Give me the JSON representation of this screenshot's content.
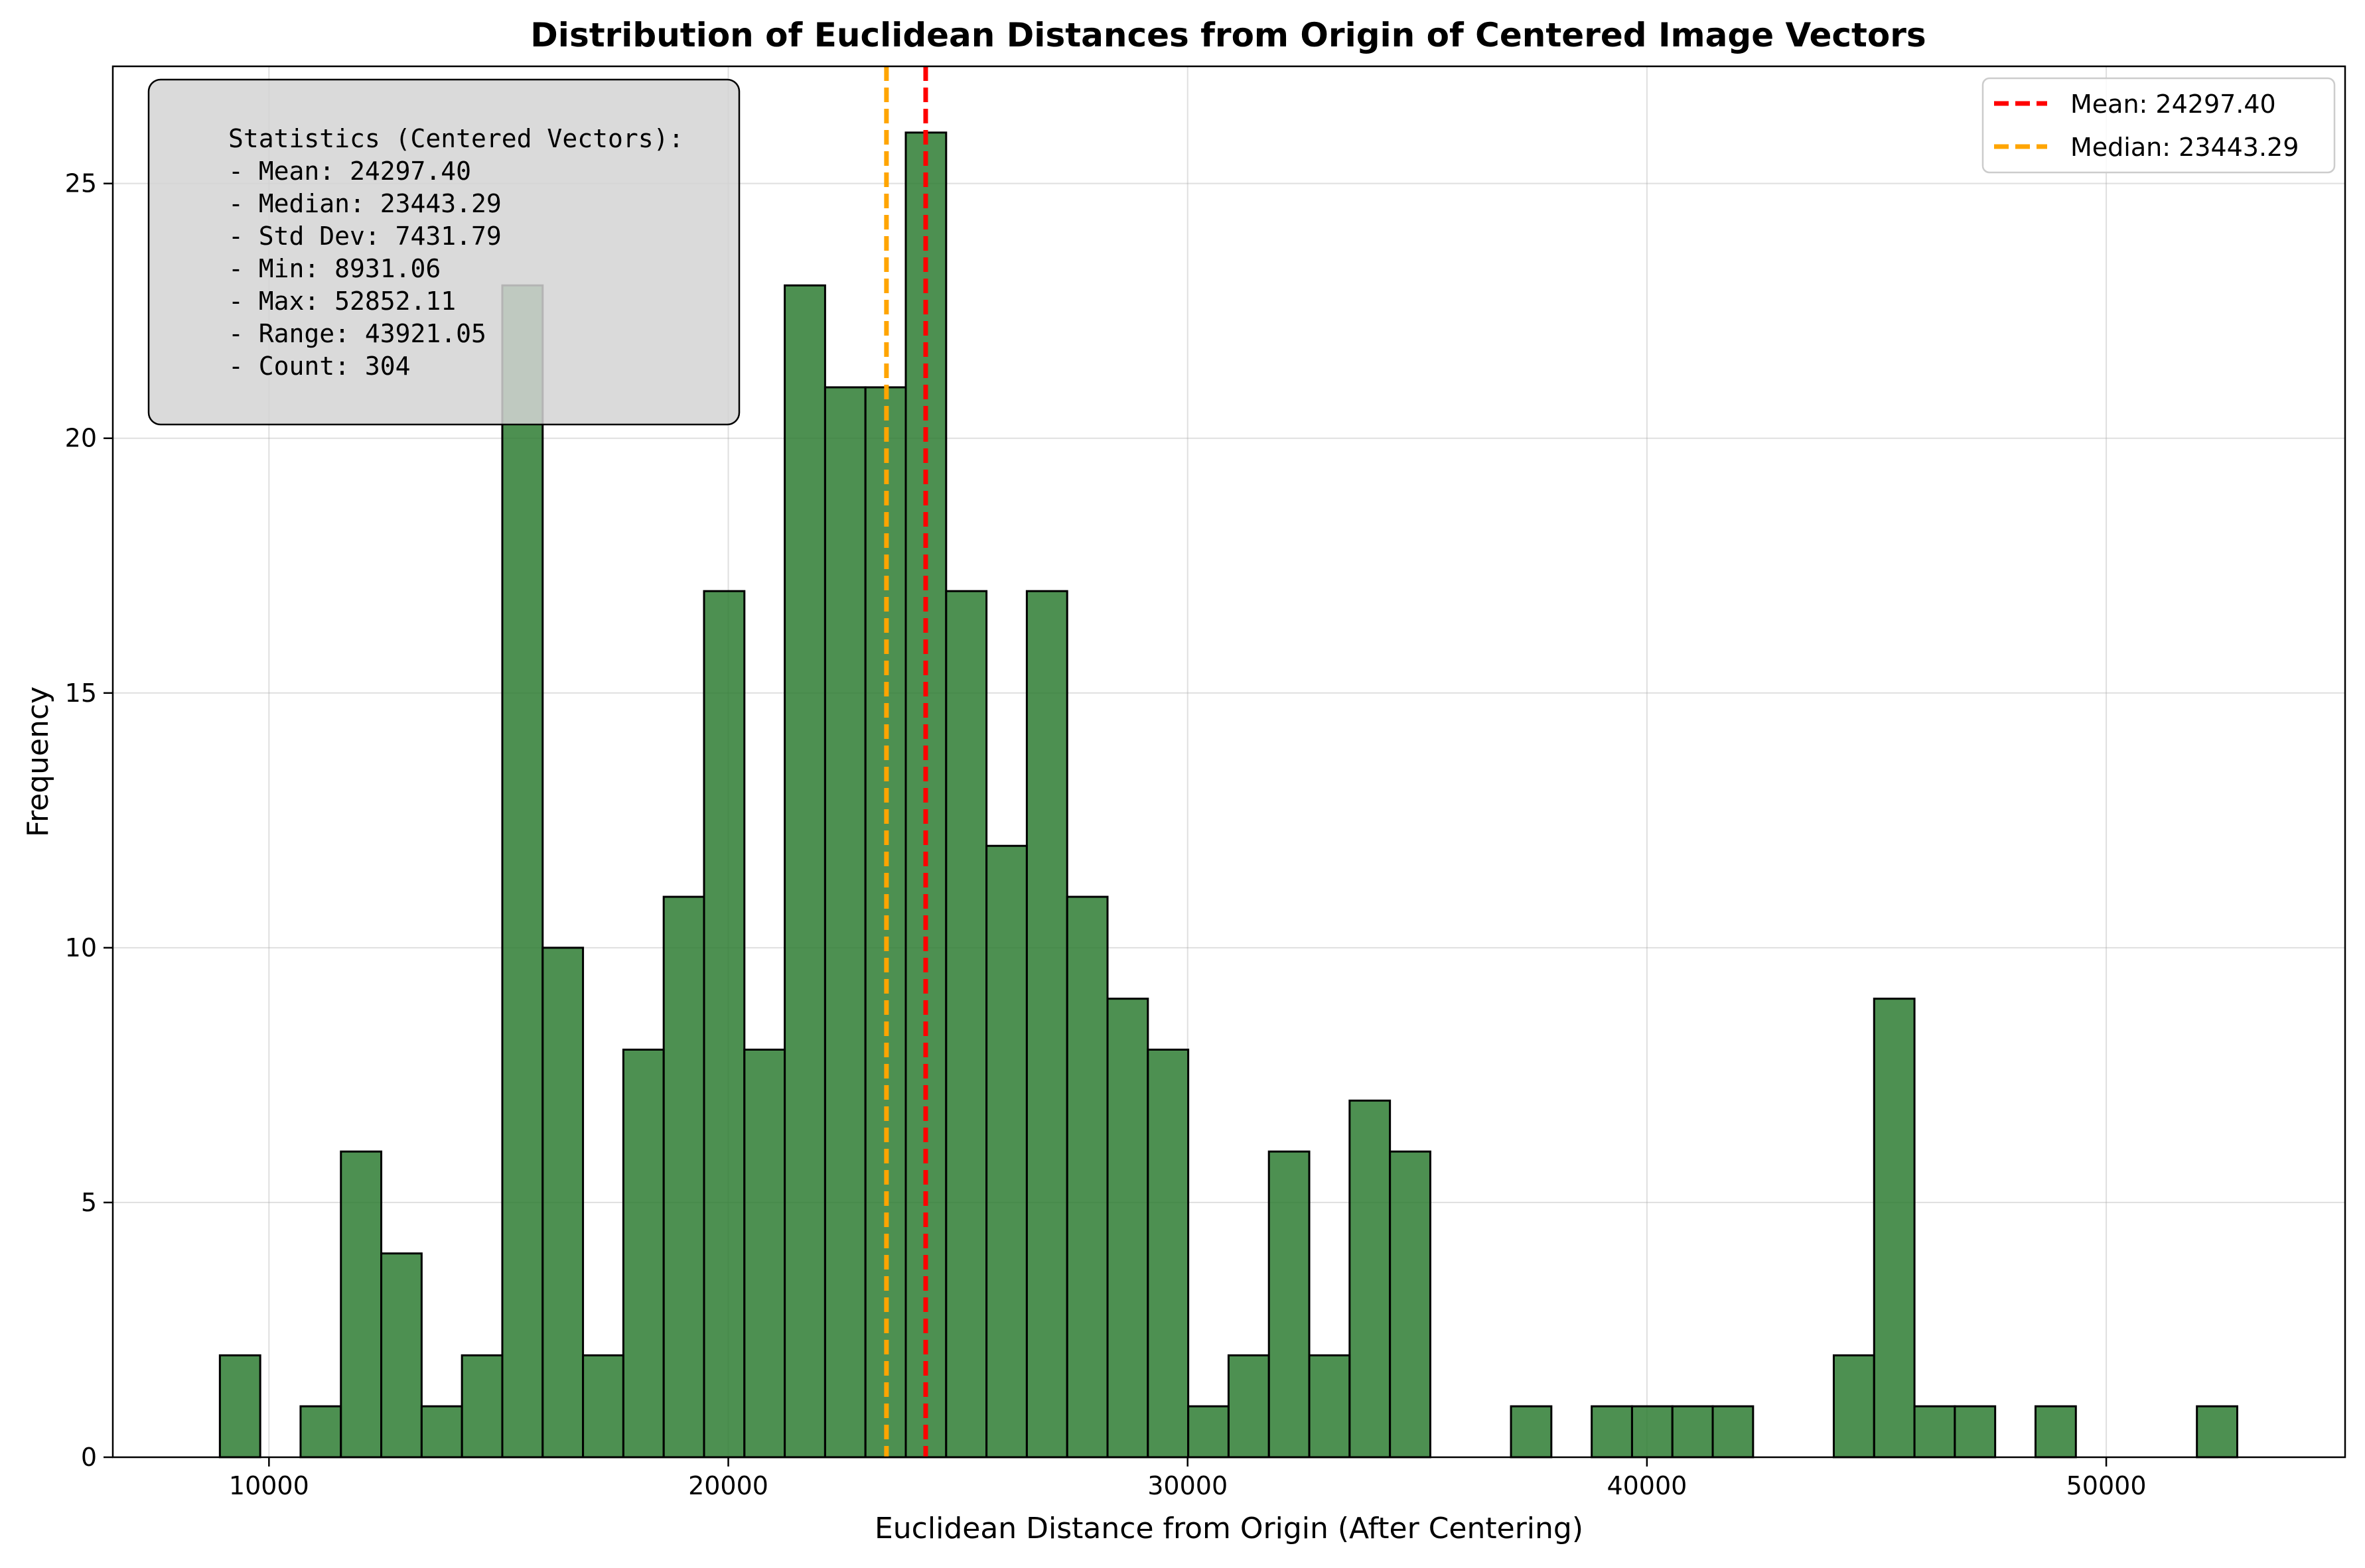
{
  "chart_data": {
    "type": "bar",
    "title": "Distribution of Euclidean Distances from Origin of Centered Image Vectors",
    "xlabel": "Euclidean Distance from Origin (After Centering)",
    "ylabel": "Frequency",
    "xlim": [
      6600,
      55200
    ],
    "ylim": [
      0,
      27.3
    ],
    "xticks": [
      10000,
      20000,
      30000,
      40000,
      50000
    ],
    "yticks": [
      0,
      5,
      10,
      15,
      20,
      25
    ],
    "grid": true,
    "bin_start": 8931.06,
    "bin_end": 52852.11,
    "counts": [
      2,
      0,
      1,
      6,
      4,
      1,
      2,
      23,
      10,
      2,
      8,
      11,
      17,
      8,
      23,
      21,
      21,
      26,
      17,
      12,
      17,
      11,
      9,
      8,
      1,
      2,
      6,
      2,
      7,
      6,
      0,
      0,
      1,
      0,
      1,
      1,
      1,
      1,
      0,
      0,
      2,
      9,
      1,
      1,
      0,
      1,
      0,
      0,
      0,
      1
    ],
    "bar_color": "#2e7d32",
    "mean_line": {
      "value": 24297.4,
      "color": "#ff0000",
      "label": "Mean: 24297.40"
    },
    "median_line": {
      "value": 23443.29,
      "color": "#ffa500",
      "label": "Median: 23443.29"
    },
    "legend_position": "top-right",
    "stats_box": {
      "lines": [
        "Statistics (Centered Vectors):",
        "- Mean: 24297.40",
        "- Median: 23443.29",
        "- Std Dev: 7431.79",
        "- Min: 8931.06",
        "- Max: 52852.11",
        "- Range: 43921.05",
        "- Count: 304"
      ]
    }
  }
}
